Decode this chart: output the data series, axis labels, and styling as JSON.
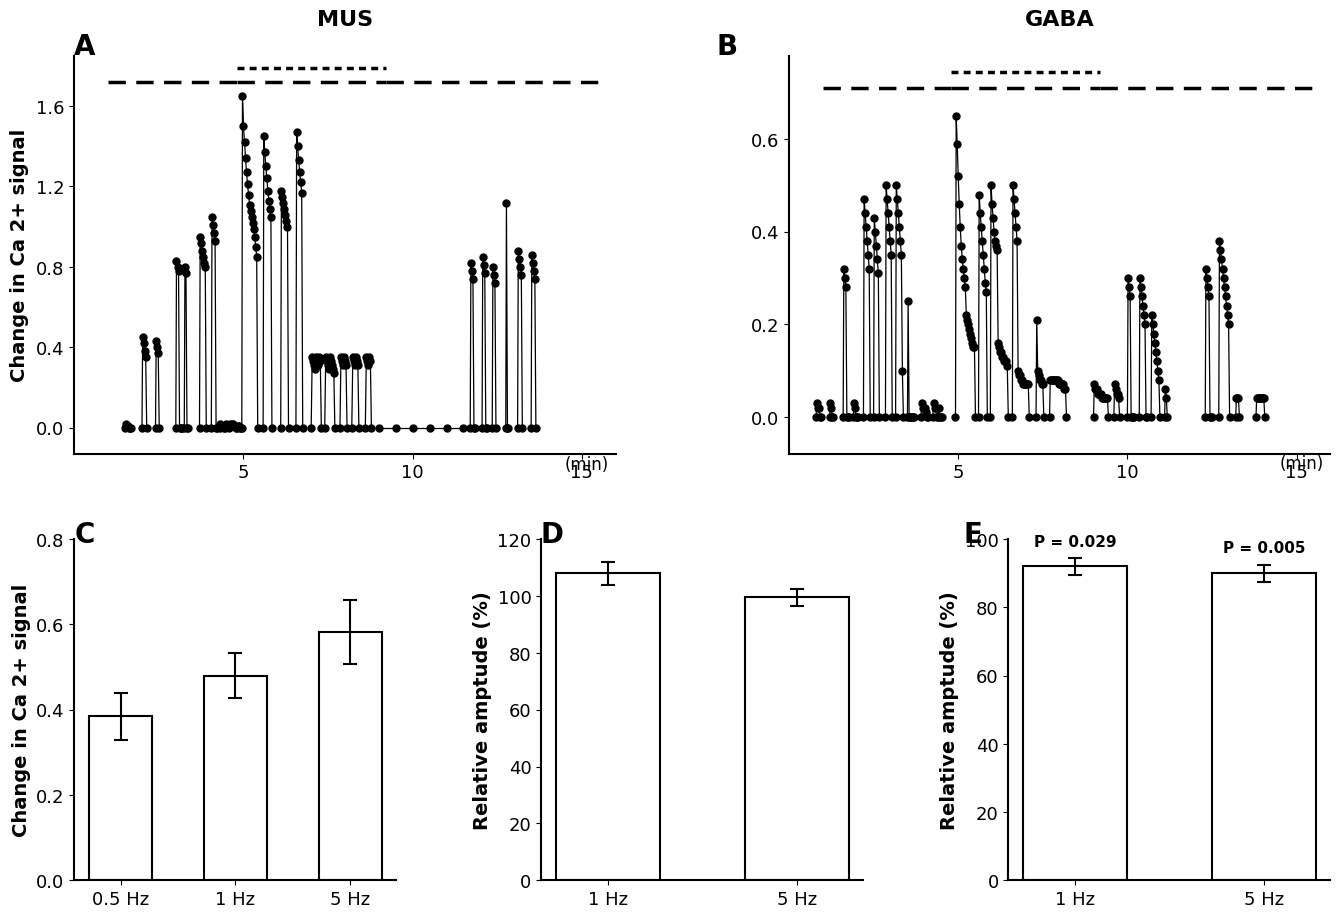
{
  "panel_A_title": "MUS",
  "panel_B_title": "GABA",
  "panel_A_ylabel": "Change in Ca 2+ signal",
  "panel_C_ylabel": "Change in Ca 2+ signal",
  "panel_D_ylabel": "Relative amptude (%)",
  "panel_E_ylabel": "Relative amptude (%)",
  "panel_A_yticks": [
    0,
    0.4,
    0.8,
    1.2,
    1.6
  ],
  "panel_A_ylim": [
    -0.13,
    1.85
  ],
  "panel_B_yticks": [
    0,
    0.2,
    0.4,
    0.6
  ],
  "panel_B_ylim": [
    -0.08,
    0.78
  ],
  "panel_AB_xticks": [
    5,
    10,
    15
  ],
  "panel_C_categories": [
    "0.5 Hz",
    "1 Hz",
    "5 Hz"
  ],
  "panel_C_values": [
    0.385,
    0.48,
    0.582
  ],
  "panel_C_errors": [
    0.055,
    0.052,
    0.075
  ],
  "panel_C_ylim": [
    0,
    0.8
  ],
  "panel_C_yticks": [
    0,
    0.2,
    0.4,
    0.6,
    0.8
  ],
  "panel_D_categories": [
    "1 Hz",
    "5 Hz"
  ],
  "panel_D_values": [
    108,
    99.5
  ],
  "panel_D_errors": [
    4.0,
    3.0
  ],
  "panel_D_ylim": [
    0,
    120
  ],
  "panel_D_yticks": [
    0,
    20,
    40,
    60,
    80,
    100,
    120
  ],
  "panel_E_categories": [
    "1 Hz",
    "5 Hz"
  ],
  "panel_E_values": [
    92,
    90
  ],
  "panel_E_errors": [
    2.5,
    2.5
  ],
  "panel_E_ylim": [
    0,
    100
  ],
  "panel_E_yticks": [
    0,
    20,
    40,
    60,
    80,
    100
  ],
  "panel_E_pvalues": [
    "P = 0.029",
    "P = 0.005"
  ]
}
